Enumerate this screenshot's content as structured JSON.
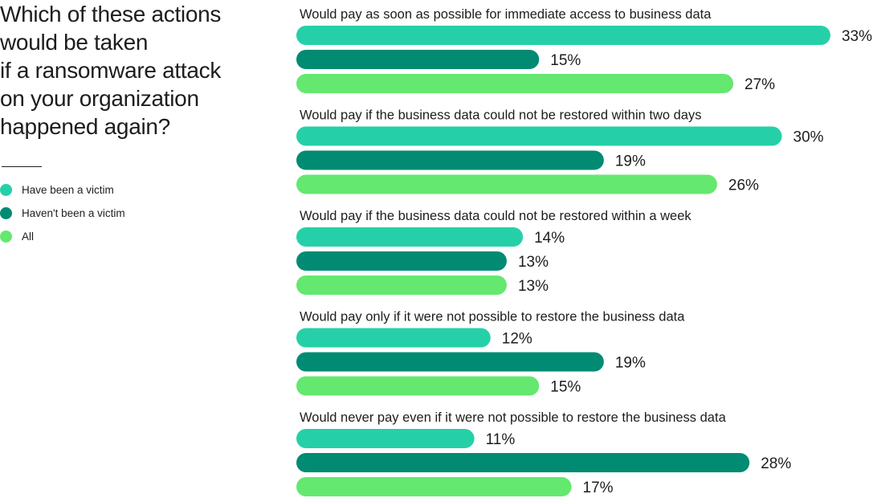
{
  "chart_data": {
    "type": "bar",
    "orientation": "horizontal",
    "title_lines": [
      "Which of these actions",
      "would be taken",
      "if a ransomware attack",
      "on your organization",
      "happened again?"
    ],
    "categories": [
      "Would pay as soon as possible for immediate access to business data",
      "Would pay if the business data could not be restored within two days",
      "Would pay if the business data could not be restored within a week",
      "Would pay only if it were not possible to restore the business data",
      "Would never pay even if it were not possible to restore the business data"
    ],
    "series": [
      {
        "name": "Have been a victim",
        "color": "#25d0a8",
        "values": [
          33,
          30,
          14,
          12,
          11
        ]
      },
      {
        "name": "Haven't been a victim",
        "color": "#008b72",
        "values": [
          15,
          19,
          13,
          19,
          28
        ]
      },
      {
        "name": "All",
        "color": "#64e86f",
        "values": [
          27,
          26,
          13,
          15,
          17
        ]
      }
    ],
    "value_suffix": "%",
    "legend_position": "left",
    "grid": false
  }
}
